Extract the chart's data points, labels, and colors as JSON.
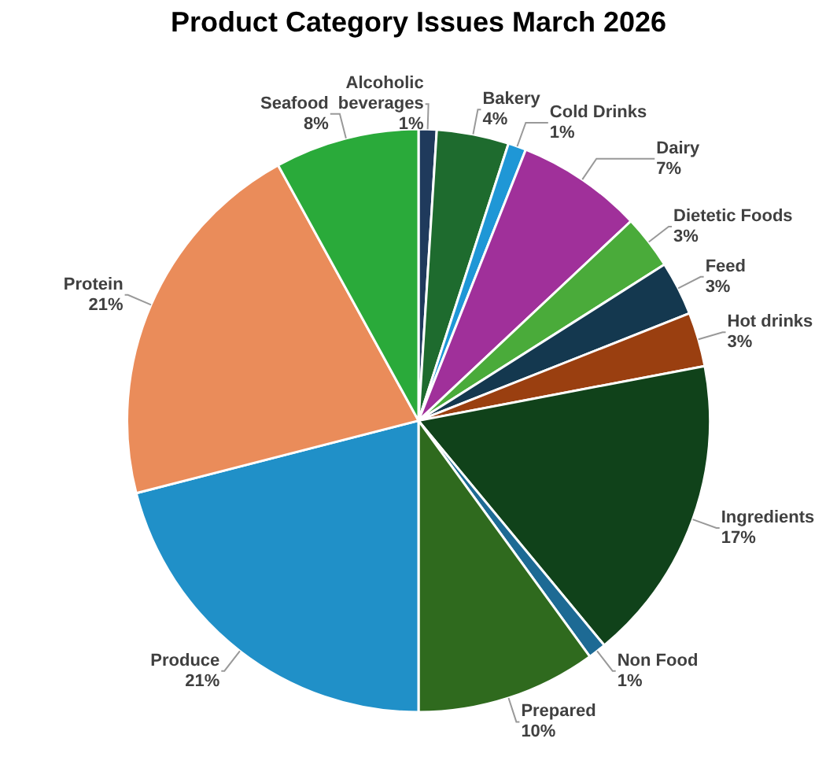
{
  "chart_data": {
    "type": "pie",
    "title": "Product Category Issues March 2026",
    "categories": [
      "Alcoholic beverages",
      "Bakery",
      "Cold Drinks",
      "Dairy",
      "Dietetic Foods",
      "Feed",
      "Hot drinks",
      "Ingredients",
      "Non Food",
      "Prepared",
      "Produce",
      "Protein",
      "Seafood"
    ],
    "values": [
      1,
      4,
      1,
      7,
      3,
      3,
      3,
      17,
      1,
      10,
      21,
      21,
      8
    ],
    "colors": [
      "#1f3a5c",
      "#1e6b2e",
      "#1f97d6",
      "#a0309a",
      "#4aab3a",
      "#14384f",
      "#9a3f10",
      "#10421a",
      "#1d6a94",
      "#2f6a1e",
      "#2090c8",
      "#ea8c5a",
      "#2aaa3a"
    ],
    "value_labels": [
      "1%",
      "4%",
      "1%",
      "7%",
      "3%",
      "3%",
      "3%",
      "17%",
      "1%",
      "10%",
      "21%",
      "21%",
      "8%"
    ],
    "legend": false
  }
}
